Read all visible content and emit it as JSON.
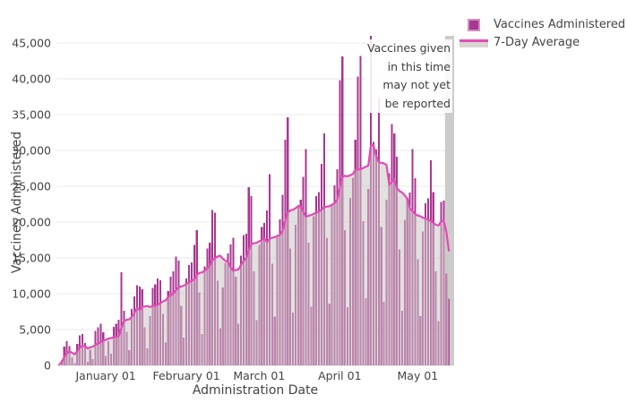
{
  "figure": {
    "annotation": {
      "text": "Vaccines given\nin this time\nmay not yet\nbe reported"
    }
  },
  "chart_data": {
    "type": "bar",
    "title": "",
    "xlabel": "Administration Date",
    "ylabel": "Vaccines Administered",
    "x_unit": "day",
    "start_date": "2020-12-14",
    "end_date": "2021-05-13",
    "ylim": [
      0,
      46250
    ],
    "yticks": [
      0,
      5000,
      10000,
      15000,
      20000,
      25000,
      30000,
      35000,
      40000,
      45000
    ],
    "xticks": [
      {
        "label": "January 01",
        "index": 18
      },
      {
        "label": "February 01",
        "index": 49
      },
      {
        "label": "March 01",
        "index": 77
      },
      {
        "label": "April 01",
        "index": 108
      },
      {
        "label": "May 01",
        "index": 138
      }
    ],
    "grid": "horizontal",
    "legend_position": "top-right-outside",
    "colors": {
      "bar": "#aa3691",
      "line": "#e24ab5",
      "area_fill": "#cbc8c5",
      "area_opacity": 0.55,
      "band": "#c9c7c5",
      "grid": "#e9e9e9",
      "zero_line": "#d9d9d9",
      "text": "#444444"
    },
    "unreported_band": {
      "start_index": 148.5,
      "note": "Vaccines given in this time may not yet be reported"
    },
    "series": [
      {
        "name": "Vaccines Administered",
        "type": "bar",
        "color": "#aa3691",
        "values": [
          150,
          700,
          2600,
          3400,
          2700,
          1100,
          300,
          3000,
          4200,
          4400,
          3100,
          500,
          2200,
          900,
          4800,
          5300,
          5800,
          4600,
          1300,
          3400,
          1600,
          5400,
          5800,
          6400,
          13000,
          7600,
          4700,
          2100,
          7900,
          9600,
          11200,
          11000,
          10600,
          5300,
          2400,
          6900,
          10800,
          11300,
          12100,
          11900,
          7200,
          3200,
          10400,
          12400,
          13100,
          15200,
          14600,
          8300,
          3900,
          12100,
          14000,
          14400,
          16800,
          18900,
          10200,
          4400,
          13800,
          16300,
          17100,
          21700,
          21300,
          11800,
          5200,
          10900,
          14300,
          15600,
          16900,
          17800,
          12400,
          5800,
          15300,
          18200,
          18400,
          24900,
          23600,
          13100,
          6300,
          16800,
          19300,
          19900,
          21600,
          26700,
          14200,
          6800,
          18100,
          20400,
          23800,
          31500,
          34600,
          16300,
          7400,
          19600,
          22400,
          23100,
          26300,
          30200,
          17100,
          8200,
          20800,
          23600,
          24200,
          28100,
          32400,
          17800,
          8600,
          22300,
          25100,
          27400,
          39800,
          43100,
          18900,
          8100,
          23400,
          26200,
          31500,
          40300,
          43200,
          20100,
          9400,
          24600,
          46000,
          31200,
          30100,
          37300,
          19300,
          8900,
          23100,
          26800,
          33700,
          32400,
          29100,
          16200,
          7600,
          20300,
          23400,
          24100,
          30200,
          26100,
          14800,
          6900,
          18700,
          22600,
          23300,
          28600,
          24200,
          13100,
          6200,
          22800,
          23000,
          12800,
          9300
        ]
      },
      {
        "name": "7-Day Average",
        "type": "line",
        "color": "#e24ab5",
        "derived": "trailing_7_day_mean_of_bar_series"
      }
    ]
  }
}
